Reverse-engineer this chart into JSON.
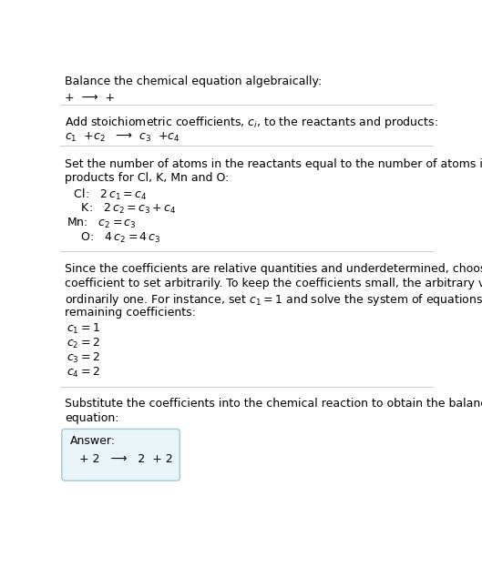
{
  "title": "Balance the chemical equation algebraically:",
  "line1": "+  ⟶  +",
  "section2_title": "Add stoichiometric coefficients, $c_i$, to the reactants and products:",
  "section2_line": "$c_1$  +$c_2$   ⟶  $c_3$  +$c_4$",
  "section3_title": "Set the number of atoms in the reactants equal to the number of atoms in the\nproducts for Cl, K, Mn and O:",
  "section3_equations": [
    "  Cl:   $2\\,c_1 = c_4$",
    "    K:   $2\\,c_2 = c_3 + c_4$",
    "Mn:   $c_2 = c_3$",
    "    O:   $4\\,c_2 = 4\\,c_3$"
  ],
  "section4_title": "Since the coefficients are relative quantities and underdetermined, choose a\ncoefficient to set arbitrarily. To keep the coefficients small, the arbitrary value is\nordinarily one. For instance, set $c_1 = 1$ and solve the system of equations for the\nremaining coefficients:",
  "section4_equations": [
    "$c_1 = 1$",
    "$c_2 = 2$",
    "$c_3 = 2$",
    "$c_4 = 2$"
  ],
  "section5_title": "Substitute the coefficients into the chemical reaction to obtain the balanced\nequation:",
  "answer_label": "Answer:",
  "answer_line": "  + 2   ⟶   2  + 2",
  "bg_color": "#ffffff",
  "answer_box_color": "#e8f4f8",
  "answer_box_border": "#a0c8d8",
  "text_color": "#000000",
  "sep_color": "#cccccc",
  "font_size": 9,
  "title_font_size": 9
}
